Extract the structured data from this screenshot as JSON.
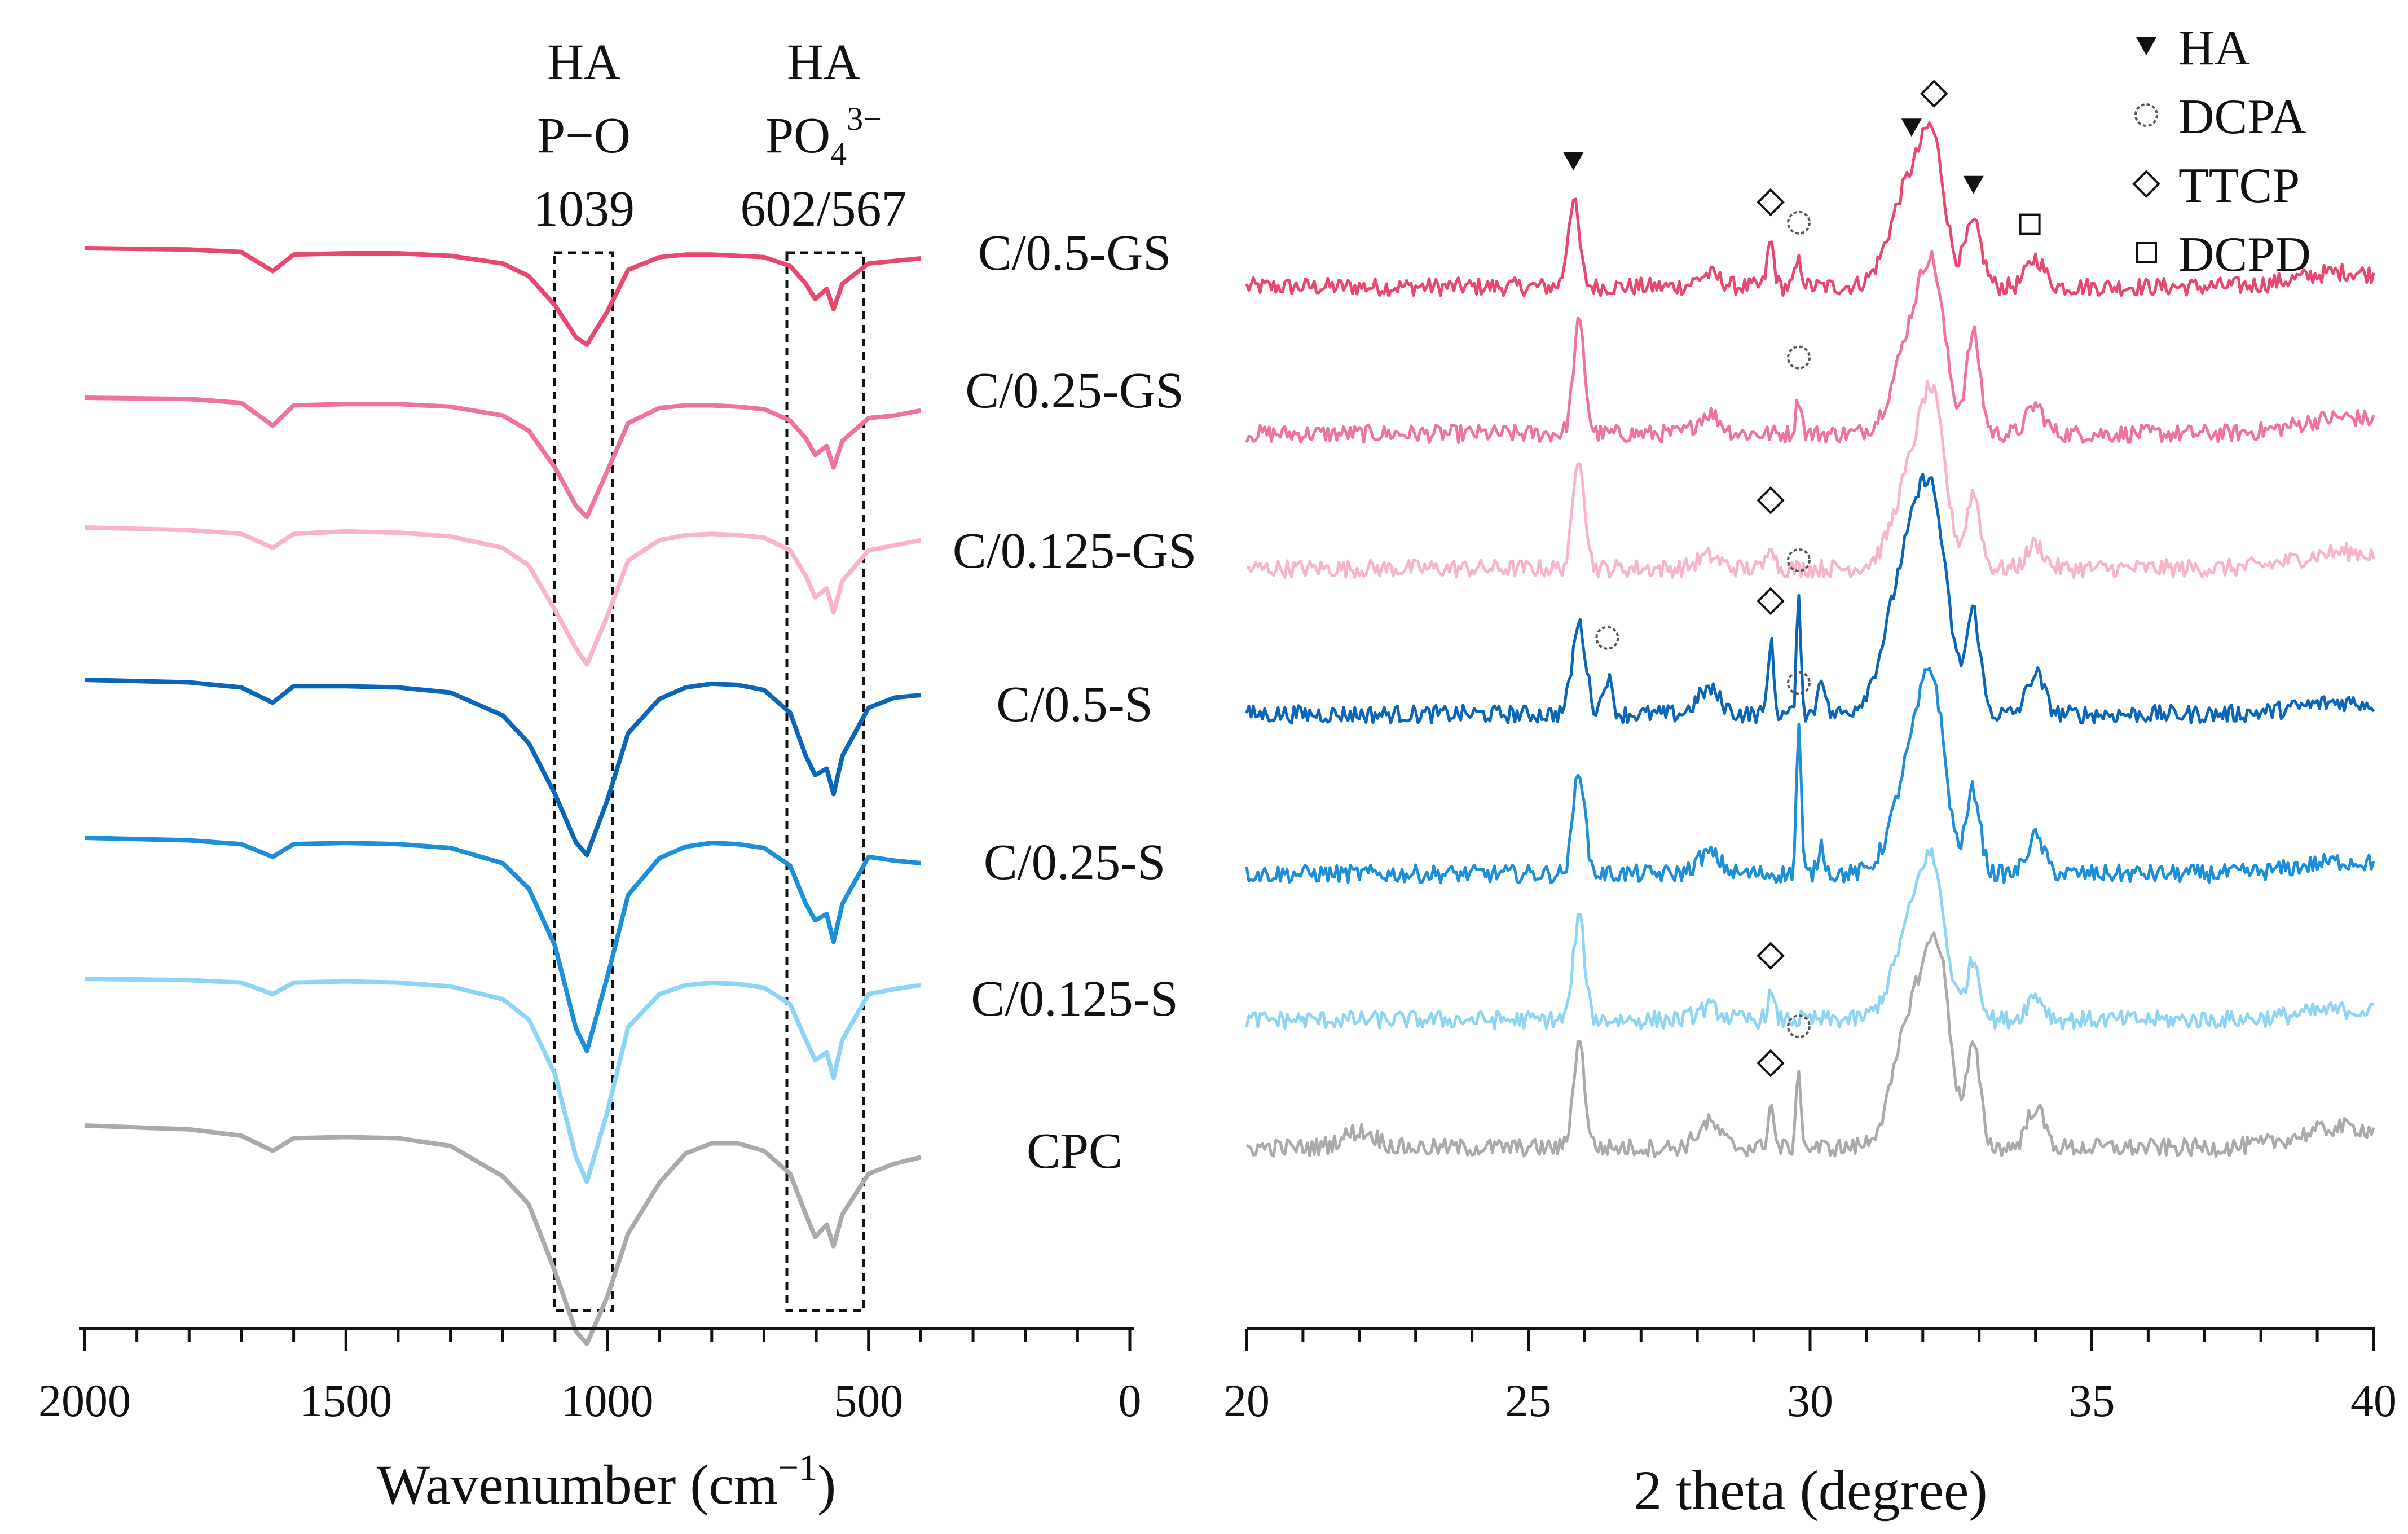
{
  "chart_data": [
    {
      "type": "line",
      "title": "",
      "xlabel": "Wavenumber (cm−1)",
      "xlabel_base": "Wavenumber (cm",
      "xlabel_sup": "−1",
      "xlabel_end": ")",
      "xlim": [
        2000,
        0
      ],
      "x_ticks": [
        2000,
        1500,
        1000,
        500,
        0
      ],
      "grid": false,
      "band_annotations": [
        {
          "lines": [
            "HA",
            "P−O",
            "1039"
          ],
          "x_range": [
            1095,
            985
          ]
        },
        {
          "lines": [
            "HA",
            "PO43−",
            "602/567"
          ],
          "line2_base": "PO",
          "line2_sub": "4",
          "line2_sup": "3−",
          "x_range": [
            665,
            515
          ]
        }
      ],
      "series": [
        {
          "name": "C/0.5-GS",
          "color": "#e8476e",
          "x": [
            2000,
            1800,
            1700,
            1640,
            1600,
            1500,
            1400,
            1300,
            1200,
            1150,
            1100,
            1060,
            1039,
            1000,
            960,
            900,
            850,
            800,
            750,
            700,
            650,
            620,
            602,
            580,
            567,
            550,
            500,
            450,
            400
          ],
          "y": [
            1.0,
            0.99,
            0.97,
            0.82,
            0.95,
            0.96,
            0.96,
            0.94,
            0.88,
            0.78,
            0.55,
            0.3,
            0.24,
            0.5,
            0.83,
            0.93,
            0.95,
            0.95,
            0.94,
            0.93,
            0.86,
            0.72,
            0.6,
            0.68,
            0.52,
            0.72,
            0.88,
            0.9,
            0.92
          ]
        },
        {
          "name": "C/0.25-GS",
          "color": "#f0739a",
          "x": [
            2000,
            1800,
            1700,
            1640,
            1600,
            1500,
            1400,
            1300,
            1200,
            1150,
            1100,
            1060,
            1039,
            1000,
            960,
            900,
            850,
            800,
            750,
            700,
            650,
            620,
            602,
            580,
            567,
            550,
            500,
            450,
            400
          ],
          "y": [
            1.0,
            0.99,
            0.96,
            0.78,
            0.94,
            0.95,
            0.95,
            0.93,
            0.86,
            0.74,
            0.45,
            0.15,
            0.06,
            0.42,
            0.8,
            0.92,
            0.94,
            0.94,
            0.93,
            0.91,
            0.82,
            0.68,
            0.55,
            0.62,
            0.45,
            0.66,
            0.84,
            0.86,
            0.9
          ]
        },
        {
          "name": "C/0.125-GS",
          "color": "#f9b4c8",
          "x": [
            2000,
            1800,
            1700,
            1640,
            1600,
            1500,
            1400,
            1300,
            1200,
            1150,
            1100,
            1060,
            1039,
            1000,
            960,
            900,
            850,
            800,
            750,
            700,
            650,
            620,
            602,
            580,
            567,
            550,
            500,
            450,
            400
          ],
          "y": [
            1.0,
            0.98,
            0.95,
            0.84,
            0.95,
            0.97,
            0.96,
            0.93,
            0.84,
            0.7,
            0.35,
            0.05,
            -0.08,
            0.3,
            0.74,
            0.9,
            0.94,
            0.95,
            0.94,
            0.92,
            0.82,
            0.62,
            0.45,
            0.52,
            0.33,
            0.58,
            0.82,
            0.86,
            0.9
          ]
        },
        {
          "name": "C/0.5-S",
          "color": "#0a66b8",
          "x": [
            2000,
            1800,
            1700,
            1640,
            1600,
            1500,
            1400,
            1300,
            1200,
            1150,
            1100,
            1060,
            1039,
            1000,
            960,
            900,
            850,
            800,
            750,
            700,
            650,
            620,
            602,
            580,
            567,
            550,
            500,
            450,
            400
          ],
          "y": [
            1.0,
            0.98,
            0.94,
            0.82,
            0.95,
            0.95,
            0.94,
            0.9,
            0.72,
            0.5,
            0.1,
            -0.28,
            -0.38,
            0.05,
            0.58,
            0.85,
            0.94,
            0.97,
            0.96,
            0.92,
            0.74,
            0.4,
            0.25,
            0.3,
            0.1,
            0.4,
            0.78,
            0.86,
            0.88
          ]
        },
        {
          "name": "C/0.25-S",
          "color": "#1b8fd9",
          "x": [
            2000,
            1800,
            1700,
            1640,
            1600,
            1500,
            1400,
            1300,
            1200,
            1150,
            1100,
            1060,
            1039,
            1000,
            960,
            900,
            850,
            800,
            750,
            700,
            650,
            620,
            602,
            580,
            567,
            550,
            500,
            450,
            400
          ],
          "y": [
            1.0,
            0.98,
            0.95,
            0.85,
            0.95,
            0.96,
            0.95,
            0.92,
            0.8,
            0.6,
            0.15,
            -0.5,
            -0.68,
            -0.1,
            0.55,
            0.84,
            0.93,
            0.96,
            0.95,
            0.92,
            0.78,
            0.48,
            0.35,
            0.4,
            0.18,
            0.48,
            0.85,
            0.82,
            0.8
          ]
        },
        {
          "name": "C/0.125-S",
          "color": "#8ed4f5",
          "x": [
            2000,
            1800,
            1700,
            1640,
            1600,
            1500,
            1400,
            1300,
            1200,
            1150,
            1100,
            1060,
            1039,
            1000,
            960,
            900,
            850,
            800,
            750,
            700,
            650,
            620,
            602,
            580,
            567,
            550,
            500,
            450,
            400
          ],
          "y": [
            1.0,
            0.99,
            0.97,
            0.88,
            0.97,
            0.98,
            0.97,
            0.94,
            0.84,
            0.68,
            0.25,
            -0.4,
            -0.6,
            -0.05,
            0.62,
            0.88,
            0.95,
            0.97,
            0.96,
            0.93,
            0.8,
            0.52,
            0.36,
            0.42,
            0.22,
            0.52,
            0.88,
            0.92,
            0.95
          ]
        },
        {
          "name": "CPC",
          "color": "#aaaaaa",
          "x": [
            2000,
            1800,
            1700,
            1640,
            1600,
            1500,
            1400,
            1300,
            1200,
            1150,
            1100,
            1060,
            1039,
            1000,
            960,
            900,
            850,
            800,
            750,
            700,
            650,
            620,
            602,
            580,
            567,
            550,
            500,
            450,
            400
          ],
          "y": [
            1.0,
            0.97,
            0.92,
            0.8,
            0.9,
            0.91,
            0.9,
            0.84,
            0.6,
            0.38,
            -0.15,
            -0.62,
            -0.72,
            -0.35,
            0.15,
            0.55,
            0.78,
            0.86,
            0.86,
            0.8,
            0.62,
            0.3,
            0.12,
            0.22,
            0.05,
            0.3,
            0.62,
            0.7,
            0.75
          ]
        }
      ]
    },
    {
      "type": "line",
      "title": "",
      "xlabel": "2 theta (degree)",
      "xlim": [
        20,
        40
      ],
      "x_ticks": [
        20,
        25,
        30,
        35,
        40
      ],
      "grid": false,
      "legend": {
        "position": "top-right",
        "entries": [
          {
            "label": "HA",
            "marker": "filled-down-triangle"
          },
          {
            "label": "DCPA",
            "marker": "open-circle"
          },
          {
            "label": "TTCP",
            "marker": "open-diamond"
          },
          {
            "label": "DCPD",
            "marker": "open-square"
          }
        ]
      },
      "series": [
        {
          "name": "C/0.5-GS",
          "color": "#e8476e",
          "base": 0.15,
          "peaks": [
            [
              25.8,
              1.05,
              0.1
            ],
            [
              29.3,
              0.55,
              0.06
            ],
            [
              29.8,
              0.3,
              0.06
            ],
            [
              31.8,
              1.3,
              0.35
            ],
            [
              32.2,
              1.2,
              0.2
            ],
            [
              32.9,
              0.75,
              0.15
            ],
            [
              34.0,
              0.35,
              0.15
            ],
            [
              28.2,
              0.15,
              0.2
            ]
          ],
          "hump": [
            39.5,
            0.18,
            0.8
          ],
          "markers": [
            {
              "x": 25.8,
              "type": "HA"
            },
            {
              "x": 29.3,
              "type": "TTCP"
            },
            {
              "x": 29.8,
              "type": "DCPA"
            },
            {
              "x": 31.8,
              "type": "HA"
            },
            {
              "x": 32.2,
              "type": "TTCP"
            },
            {
              "x": 32.9,
              "type": "HA"
            },
            {
              "x": 33.9,
              "type": "DCPD"
            }
          ]
        },
        {
          "name": "C/0.25-GS",
          "color": "#f0739a",
          "base": 0.18,
          "peaks": [
            [
              25.9,
              1.35,
              0.1
            ],
            [
              29.8,
              0.45,
              0.05
            ],
            [
              31.9,
              1.4,
              0.35
            ],
            [
              32.2,
              1.1,
              0.2
            ],
            [
              32.9,
              1.2,
              0.12
            ],
            [
              34.0,
              0.35,
              0.15
            ],
            [
              28.2,
              0.25,
              0.2
            ]
          ],
          "hump": [
            39.5,
            0.2,
            0.8
          ],
          "markers": [
            {
              "x": 29.8,
              "type": "DCPA"
            }
          ]
        },
        {
          "name": "C/0.125-GS",
          "color": "#f9b4c8",
          "base": 0.12,
          "peaks": [
            [
              25.9,
              1.4,
              0.1
            ],
            [
              29.3,
              0.35,
              0.06
            ],
            [
              31.9,
              1.35,
              0.35
            ],
            [
              32.2,
              1.2,
              0.2
            ],
            [
              32.9,
              0.9,
              0.12
            ],
            [
              34.0,
              0.3,
              0.15
            ],
            [
              28.2,
              0.15,
              0.2
            ]
          ],
          "hump": [
            39.5,
            0.2,
            0.8
          ],
          "markers": [
            {
              "x": 29.3,
              "type": "TTCP"
            }
          ]
        },
        {
          "name": "C/0.5-S",
          "color": "#0a66b8",
          "base": 0.2,
          "peaks": [
            [
              25.9,
              1.1,
              0.12
            ],
            [
              26.4,
              0.45,
              0.08
            ],
            [
              29.3,
              0.9,
              0.05
            ],
            [
              29.8,
              1.4,
              0.04
            ],
            [
              30.2,
              0.5,
              0.06
            ],
            [
              31.8,
              2.0,
              0.4
            ],
            [
              32.2,
              1.5,
              0.25
            ],
            [
              32.9,
              1.2,
              0.12
            ],
            [
              34.0,
              0.5,
              0.15
            ],
            [
              28.2,
              0.3,
              0.2
            ]
          ],
          "hump": [
            39.5,
            0.15,
            0.8
          ],
          "markers": [
            {
              "x": 26.4,
              "type": "DCPA"
            },
            {
              "x": 29.3,
              "type": "TTCP"
            },
            {
              "x": 29.8,
              "type": "DCPA"
            }
          ]
        },
        {
          "name": "C/0.25-S",
          "color": "#1b8fd9",
          "base": 0.18,
          "peaks": [
            [
              25.9,
              1.3,
              0.1
            ],
            [
              29.8,
              1.85,
              0.04
            ],
            [
              30.2,
              0.35,
              0.06
            ],
            [
              31.9,
              1.6,
              0.35
            ],
            [
              32.2,
              1.3,
              0.2
            ],
            [
              32.9,
              1.0,
              0.12
            ],
            [
              34.0,
              0.45,
              0.15
            ],
            [
              28.2,
              0.25,
              0.2
            ]
          ],
          "hump": [
            39.5,
            0.15,
            0.8
          ],
          "markers": [
            {
              "x": 29.8,
              "type": "DCPA"
            }
          ]
        },
        {
          "name": "C/0.125-S",
          "color": "#8ed4f5",
          "base": 0.12,
          "peaks": [
            [
              25.9,
              1.25,
              0.1
            ],
            [
              29.3,
              0.3,
              0.06
            ],
            [
              31.9,
              1.35,
              0.35
            ],
            [
              32.2,
              1.0,
              0.2
            ],
            [
              32.9,
              0.7,
              0.12
            ],
            [
              34.0,
              0.3,
              0.15
            ],
            [
              28.2,
              0.15,
              0.2
            ]
          ],
          "hump": [
            39.5,
            0.12,
            0.8
          ],
          "markers": [
            {
              "x": 29.3,
              "type": "TTCP"
            }
          ]
        },
        {
          "name": "CPC",
          "color": "#aaaaaa",
          "base": 0.35,
          "peaks": [
            [
              25.9,
              1.3,
              0.1
            ],
            [
              29.3,
              0.55,
              0.05
            ],
            [
              29.8,
              1.0,
              0.04
            ],
            [
              31.9,
              1.85,
              0.35
            ],
            [
              32.3,
              1.5,
              0.2
            ],
            [
              32.9,
              1.2,
              0.12
            ],
            [
              34.0,
              0.5,
              0.15
            ],
            [
              28.2,
              0.3,
              0.2
            ],
            [
              22.0,
              0.2,
              0.3
            ]
          ],
          "hump": [
            39.5,
            0.25,
            0.8
          ],
          "markers": [
            {
              "x": 29.3,
              "type": "TTCP"
            },
            {
              "x": 29.8,
              "type": "DCPA"
            }
          ]
        }
      ]
    }
  ]
}
